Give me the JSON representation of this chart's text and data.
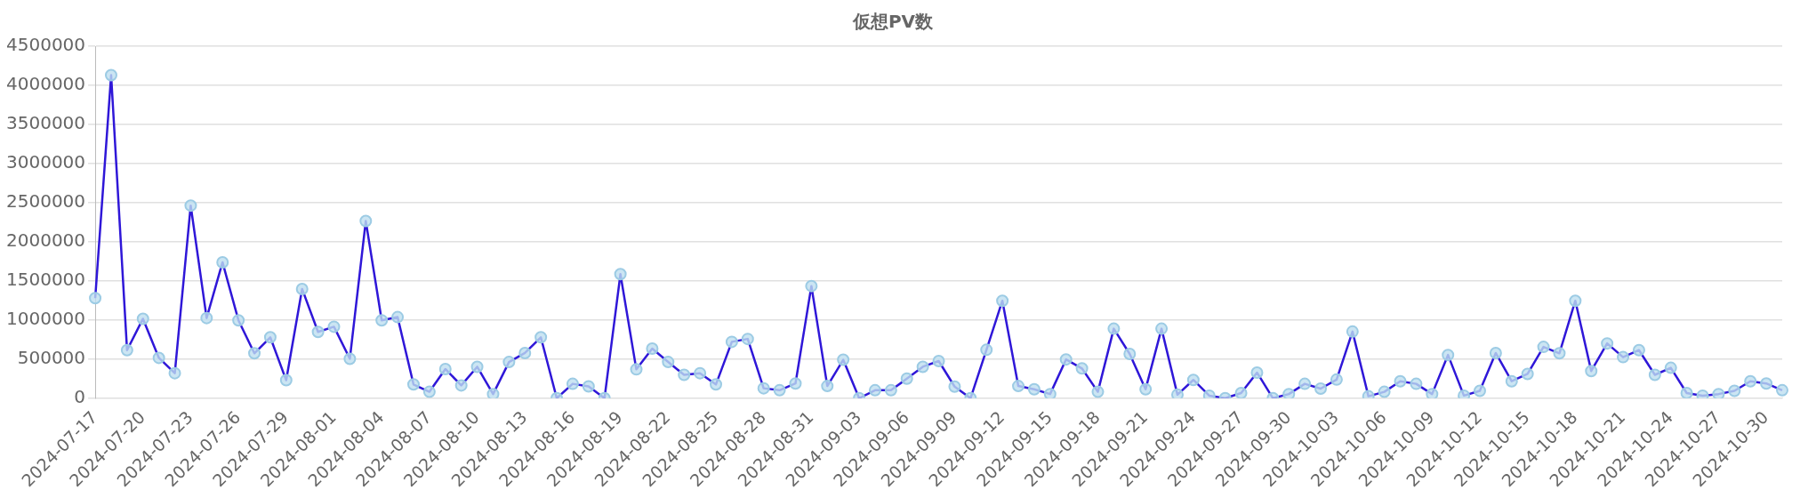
{
  "chart_data": {
    "type": "line",
    "title": "仮想PV数",
    "categories": [
      "2024-07-17",
      null,
      null,
      "2024-07-20",
      null,
      null,
      "2024-07-23",
      null,
      null,
      "2024-07-26",
      null,
      null,
      "2024-07-29",
      null,
      null,
      "2024-08-01",
      null,
      null,
      "2024-08-04",
      null,
      null,
      "2024-08-07",
      null,
      null,
      "2024-08-10",
      null,
      null,
      "2024-08-13",
      null,
      null,
      "2024-08-16",
      null,
      null,
      "2024-08-19",
      null,
      null,
      "2024-08-22",
      null,
      null,
      "2024-08-25",
      null,
      null,
      "2024-08-28",
      null,
      null,
      "2024-08-31",
      null,
      null,
      "2024-09-03",
      null,
      null,
      "2024-09-06",
      null,
      null,
      "2024-09-09",
      null,
      null,
      "2024-09-12",
      null,
      null,
      "2024-09-15",
      null,
      null,
      "2024-09-18",
      null,
      null,
      "2024-09-21",
      null,
      null,
      "2024-09-24",
      null,
      null,
      "2024-09-27",
      null,
      null,
      "2024-09-30",
      null,
      null,
      "2024-10-03",
      null,
      null,
      "2024-10-06",
      null,
      null,
      "2024-10-09",
      null,
      null,
      "2024-10-12",
      null,
      null,
      "2024-10-15",
      null,
      null,
      "2024-10-18",
      null,
      null,
      "2024-10-21",
      null,
      null,
      "2024-10-24",
      null,
      null,
      "2024-10-27",
      null,
      null,
      "2024-10-30",
      null
    ],
    "series": [
      {
        "color": "#2f17d8",
        "values": [
          1280000,
          4130000,
          615000,
          1016000,
          516000,
          320000,
          2463000,
          1025000,
          1738000,
          996000,
          574000,
          779000,
          230000,
          1397000,
          848000,
          914000,
          504000,
          2266000,
          996000,
          1037000,
          176000,
          82000,
          373000,
          164000,
          402000,
          53000,
          463000,
          578000,
          779000,
          0,
          184000,
          152000,
          0,
          1586000,
          369000,
          635000,
          463000,
          299000,
          320000,
          176000,
          721000,
          758000,
          127000,
          102000,
          189000,
          1434000,
          156000,
          492000,
          0,
          102000,
          102000,
          250000,
          402000,
          475000,
          148000,
          0,
          619000,
          1246000,
          156000,
          115000,
          53000,
          496000,
          381000,
          82000,
          889000,
          566000,
          115000,
          889000,
          45000,
          234000,
          33000,
          0,
          66000,
          328000,
          0,
          53000,
          184000,
          123000,
          238000,
          852000,
          25000,
          82000,
          217000,
          184000,
          53000,
          553000,
          33000,
          94000,
          578000,
          217000,
          311000,
          656000,
          574000,
          1246000,
          348000,
          701000,
          525000,
          615000,
          299000,
          389000,
          66000,
          33000,
          53000,
          94000,
          217000,
          189000,
          102000
        ]
      }
    ],
    "ylim": [
      0,
      4500000
    ],
    "yticks": [
      0,
      500000,
      1000000,
      1500000,
      2000000,
      2500000,
      3000000,
      3500000,
      4000000,
      4500000
    ],
    "grid": "y",
    "legend": false,
    "marker": "circle",
    "line_style": "solid"
  }
}
